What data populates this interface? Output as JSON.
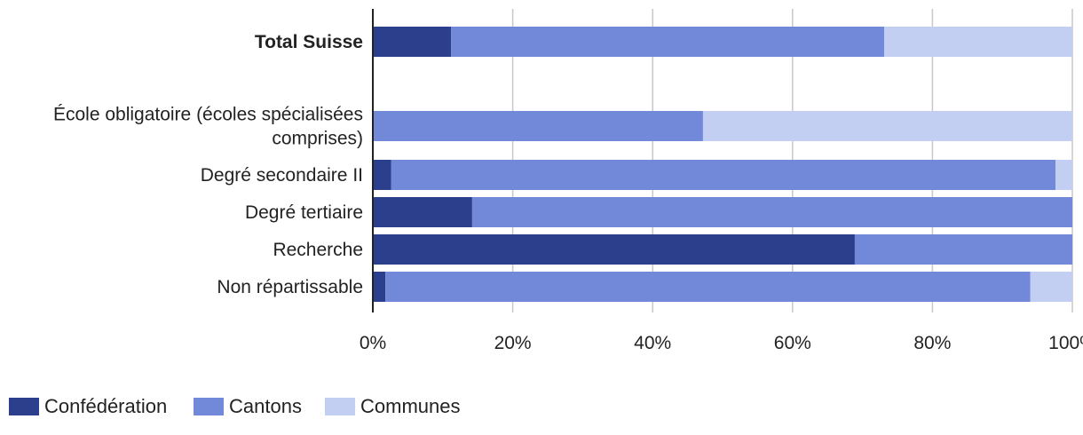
{
  "chart_data": {
    "type": "bar",
    "orientation": "horizontal",
    "stacked": true,
    "percent": true,
    "categories": [
      {
        "lines": [
          "Total Suisse"
        ],
        "bold": true
      },
      {
        "lines": [
          "École obligatoire (écoles spécialisées",
          "comprises)"
        ],
        "bold": false
      },
      {
        "lines": [
          "Degré secondaire II"
        ],
        "bold": false
      },
      {
        "lines": [
          "Degré tertiaire"
        ],
        "bold": false
      },
      {
        "lines": [
          "Recherche"
        ],
        "bold": false
      },
      {
        "lines": [
          "Non répartissable"
        ],
        "bold": false
      }
    ],
    "series": [
      {
        "name": "Confédération",
        "color": "#2b3f8c",
        "values": [
          11.2,
          0,
          2.6,
          14.2,
          68.9,
          1.8
        ]
      },
      {
        "name": "Cantons",
        "color": "#7189d8",
        "values": [
          61.9,
          47.2,
          95.0,
          85.8,
          31.1,
          92.2
        ]
      },
      {
        "name": "Communes",
        "color": "#c3cff2",
        "values": [
          26.9,
          52.8,
          2.4,
          0,
          0,
          6.0
        ]
      }
    ],
    "xlim": [
      0,
      100
    ],
    "xticks": [
      0,
      20,
      40,
      60,
      80,
      100
    ],
    "tick_suffix": "%",
    "grid": true,
    "legend_position": "bottom-left"
  }
}
